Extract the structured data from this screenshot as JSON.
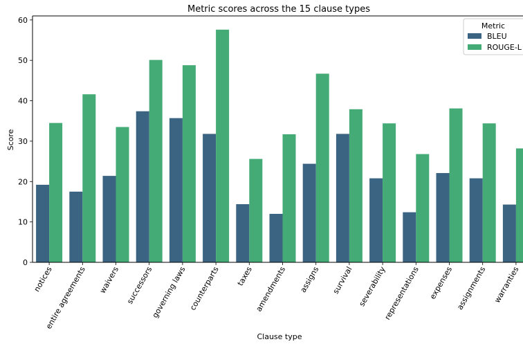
{
  "chart_data": {
    "type": "bar",
    "title": "Metric scores across the 15 clause types",
    "xlabel": "Clause type",
    "ylabel": "Score",
    "ylim": [
      0,
      61
    ],
    "yticks": [
      0,
      10,
      20,
      30,
      40,
      50,
      60
    ],
    "grid": false,
    "legend_title": "Metric",
    "legend_position": "top-right",
    "categories": [
      "notices",
      "entire agreements",
      "waivers",
      "successors",
      "governing laws",
      "counterparts",
      "taxes",
      "amendments",
      "assigns",
      "survival",
      "severability",
      "representations",
      "expenses",
      "assignments",
      "warranties"
    ],
    "series": [
      {
        "name": "BLEU",
        "color": "#3b6483",
        "values": [
          19.2,
          17.5,
          21.4,
          37.4,
          35.7,
          31.8,
          14.4,
          12.0,
          24.4,
          31.8,
          20.8,
          12.4,
          22.1,
          20.8,
          14.3
        ]
      },
      {
        "name": "ROUGE-L",
        "color": "#44aa76",
        "values": [
          34.5,
          41.6,
          33.5,
          50.1,
          48.8,
          57.6,
          25.6,
          31.7,
          46.7,
          37.9,
          34.4,
          26.8,
          38.1,
          34.4,
          28.2
        ]
      }
    ]
  }
}
